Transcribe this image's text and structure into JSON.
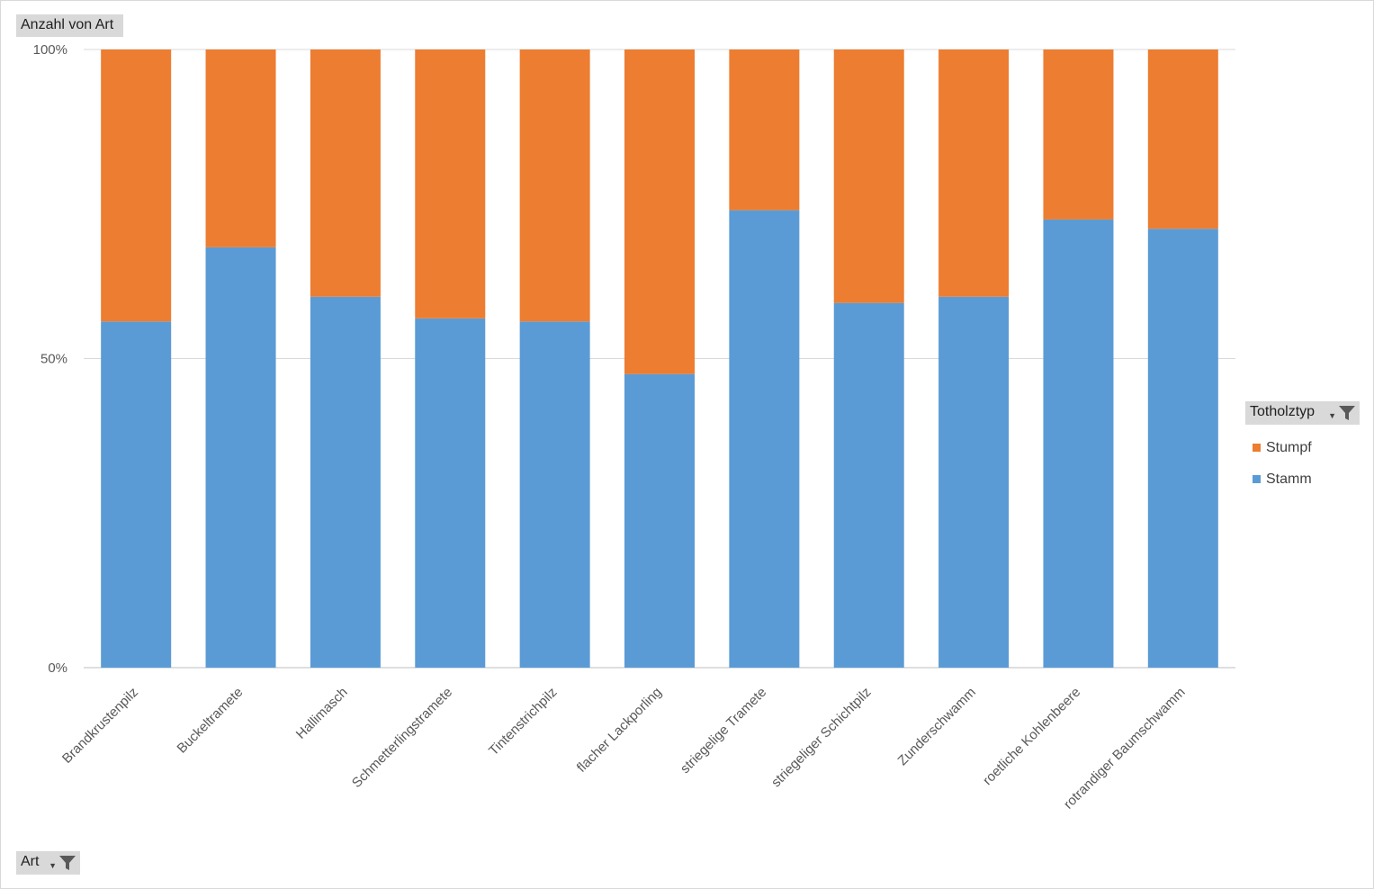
{
  "value_field": {
    "label": "Anzahl von Art"
  },
  "axis_field": {
    "label": "Art",
    "filter_icon": "filter-icon"
  },
  "legend": {
    "title": "Totholztyp",
    "filter_icon": "filter-icon",
    "items": [
      {
        "label": "Stumpf",
        "color": "#ED7D31"
      },
      {
        "label": "Stamm",
        "color": "#5B9BD5"
      }
    ]
  },
  "chart_data": {
    "type": "bar",
    "stacked": true,
    "percent_stacked": true,
    "title": "",
    "xlabel": "",
    "ylabel": "",
    "ylim": [
      0,
      100
    ],
    "yticks": [
      "0%",
      "50%",
      "100%"
    ],
    "grid": true,
    "legend_position": "right",
    "categories": [
      "Brandkrustenpilz",
      "Buckeltramete",
      "Hallimasch",
      "Schmetterlingstramete",
      "Tintenstrichpilz",
      "flacher Lackporling",
      "striegelige Tramete",
      "striegeliger Schichtpilz",
      "Zunderschwamm",
      "roetliche Kohlenbeere",
      "rotrandiger Baumschwamm"
    ],
    "series": [
      {
        "name": "Stamm",
        "color": "#5B9BD5",
        "values": [
          56,
          68,
          60,
          56.5,
          56,
          47.5,
          74,
          59,
          60,
          72.5,
          71
        ]
      },
      {
        "name": "Stumpf",
        "color": "#ED7D31",
        "values": [
          44,
          32,
          40,
          43.5,
          44,
          52.5,
          26,
          41,
          40,
          27.5,
          29
        ]
      }
    ]
  }
}
